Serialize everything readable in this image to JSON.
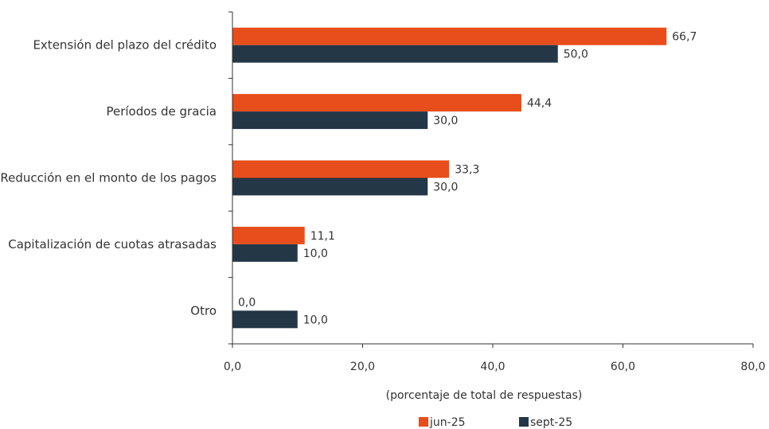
{
  "chart_data": {
    "type": "bar",
    "orientation": "horizontal",
    "categories": [
      "Extensión del plazo del crédito",
      "Períodos de gracia",
      "Reducción en el monto de los pagos",
      "Capitalización de cuotas atrasadas",
      "Otro"
    ],
    "series": [
      {
        "name": "jun-25",
        "color": "#e84e1b",
        "values": [
          66.7,
          44.4,
          33.3,
          11.1,
          0.0
        ],
        "labels": [
          "66,7",
          "44,4",
          "33,3",
          "11,1",
          "0,0"
        ]
      },
      {
        "name": "sept-25",
        "color": "#243746",
        "values": [
          50.0,
          30.0,
          30.0,
          10.0,
          10.0
        ],
        "labels": [
          "50,0",
          "30,0",
          "30,0",
          "10,0",
          "10,0"
        ]
      }
    ],
    "xlabel": "(porcentaje de total de respuestas)",
    "xlim": [
      0,
      80
    ],
    "xticks": [
      0,
      20,
      40,
      60,
      80
    ],
    "xtick_labels": [
      "0,0",
      "20,0",
      "40,0",
      "60,0",
      "80,0"
    ],
    "grid": false,
    "legend_position": "bottom"
  }
}
